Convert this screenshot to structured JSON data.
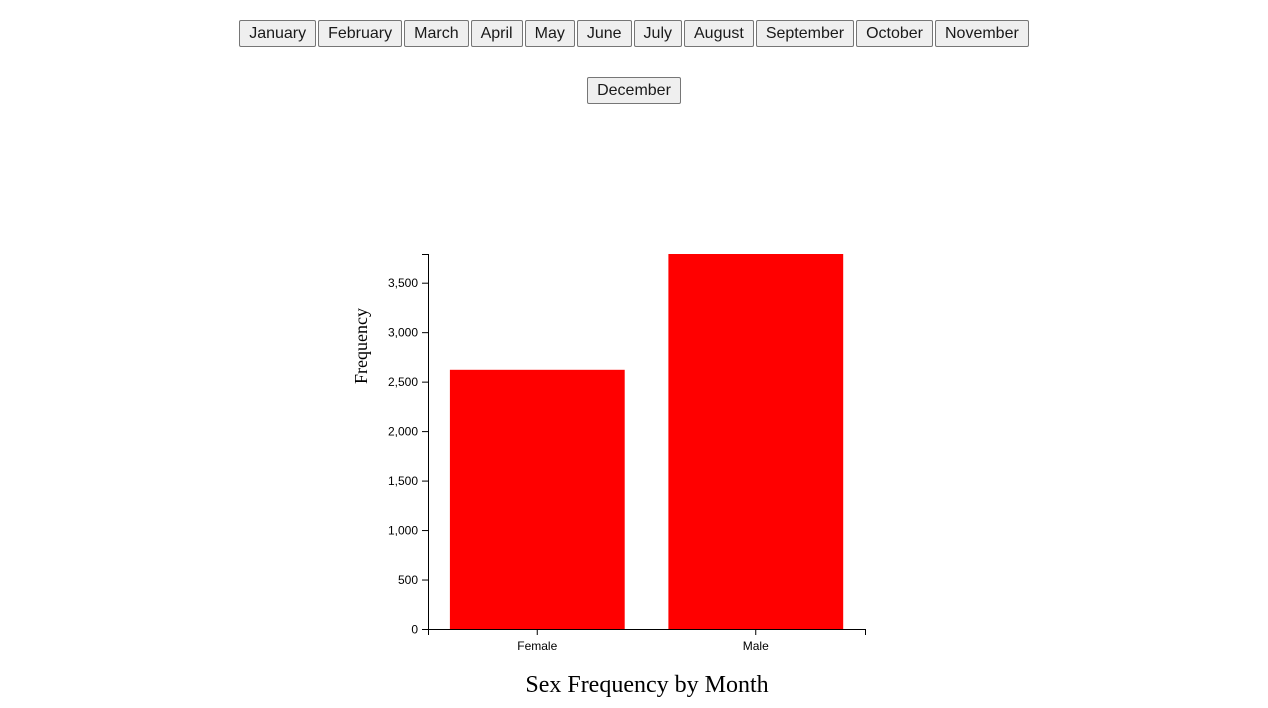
{
  "months": [
    "January",
    "February",
    "March",
    "April",
    "May",
    "June",
    "July",
    "August",
    "September",
    "October",
    "November",
    "December"
  ],
  "chart_data": {
    "type": "bar",
    "title": "Sex Frequency by Month",
    "xlabel": "",
    "ylabel": "Frequency",
    "categories": [
      "Female",
      "Male"
    ],
    "values": [
      2620,
      3790
    ],
    "ylim": [
      0,
      3790
    ],
    "yticks": [
      0,
      500,
      1000,
      1500,
      2000,
      2500,
      3000,
      3500
    ],
    "ytick_labels": [
      "0",
      "500",
      "1,000",
      "1,500",
      "2,000",
      "2,500",
      "3,000",
      "3,500"
    ],
    "bar_color": "#ff0000",
    "grid": false,
    "legend": "none"
  }
}
